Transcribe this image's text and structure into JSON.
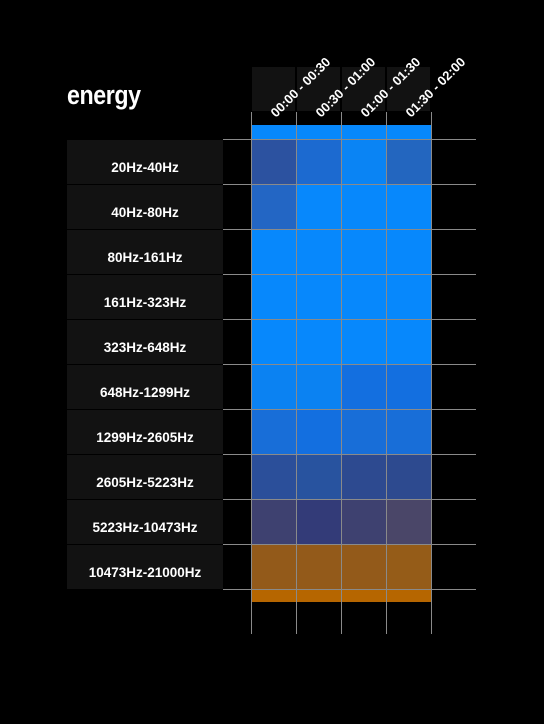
{
  "chart_data": {
    "type": "heatmap",
    "title": "energy",
    "columns": [
      "00:00 - 00:30",
      "00:30 - 01:00",
      "01:00 - 01:30",
      "01:30 - 02:00"
    ],
    "rows": [
      "20Hz-40Hz",
      "40Hz-80Hz",
      "80Hz-161Hz",
      "161Hz-323Hz",
      "323Hz-648Hz",
      "648Hz-1299Hz",
      "1299Hz-2605Hz",
      "2605Hz-5223Hz",
      "5223Hz-10473Hz",
      "10473Hz-21000Hz"
    ],
    "cells": [
      [
        "#2c52a0",
        "#1c6ad0",
        "#0a84f4",
        "#2366bf"
      ],
      [
        "#2366c4",
        "#0788fc",
        "#0788fc",
        "#0788fc"
      ],
      [
        "#0788fc",
        "#0788fc",
        "#0788fc",
        "#0788fc"
      ],
      [
        "#0788fc",
        "#0788fc",
        "#0788fc",
        "#0788fc"
      ],
      [
        "#0788fc",
        "#0788fc",
        "#0788fc",
        "#0788fc"
      ],
      [
        "#0b82f2",
        "#0b82f2",
        "#136fe0",
        "#136fe0"
      ],
      [
        "#186ed8",
        "#136fe0",
        "#186ed8",
        "#186ed8"
      ],
      [
        "#2b4f9a",
        "#28539f",
        "#2d4a90",
        "#2d4a8f"
      ],
      [
        "#3e4170",
        "#333b78",
        "#3e4170",
        "#4a4668"
      ],
      [
        "#935a1a",
        "#935a1a",
        "#935a1a",
        "#955c18"
      ]
    ],
    "top_strip_color": "#0788fc",
    "bottom_strip_color": "#b66600"
  }
}
